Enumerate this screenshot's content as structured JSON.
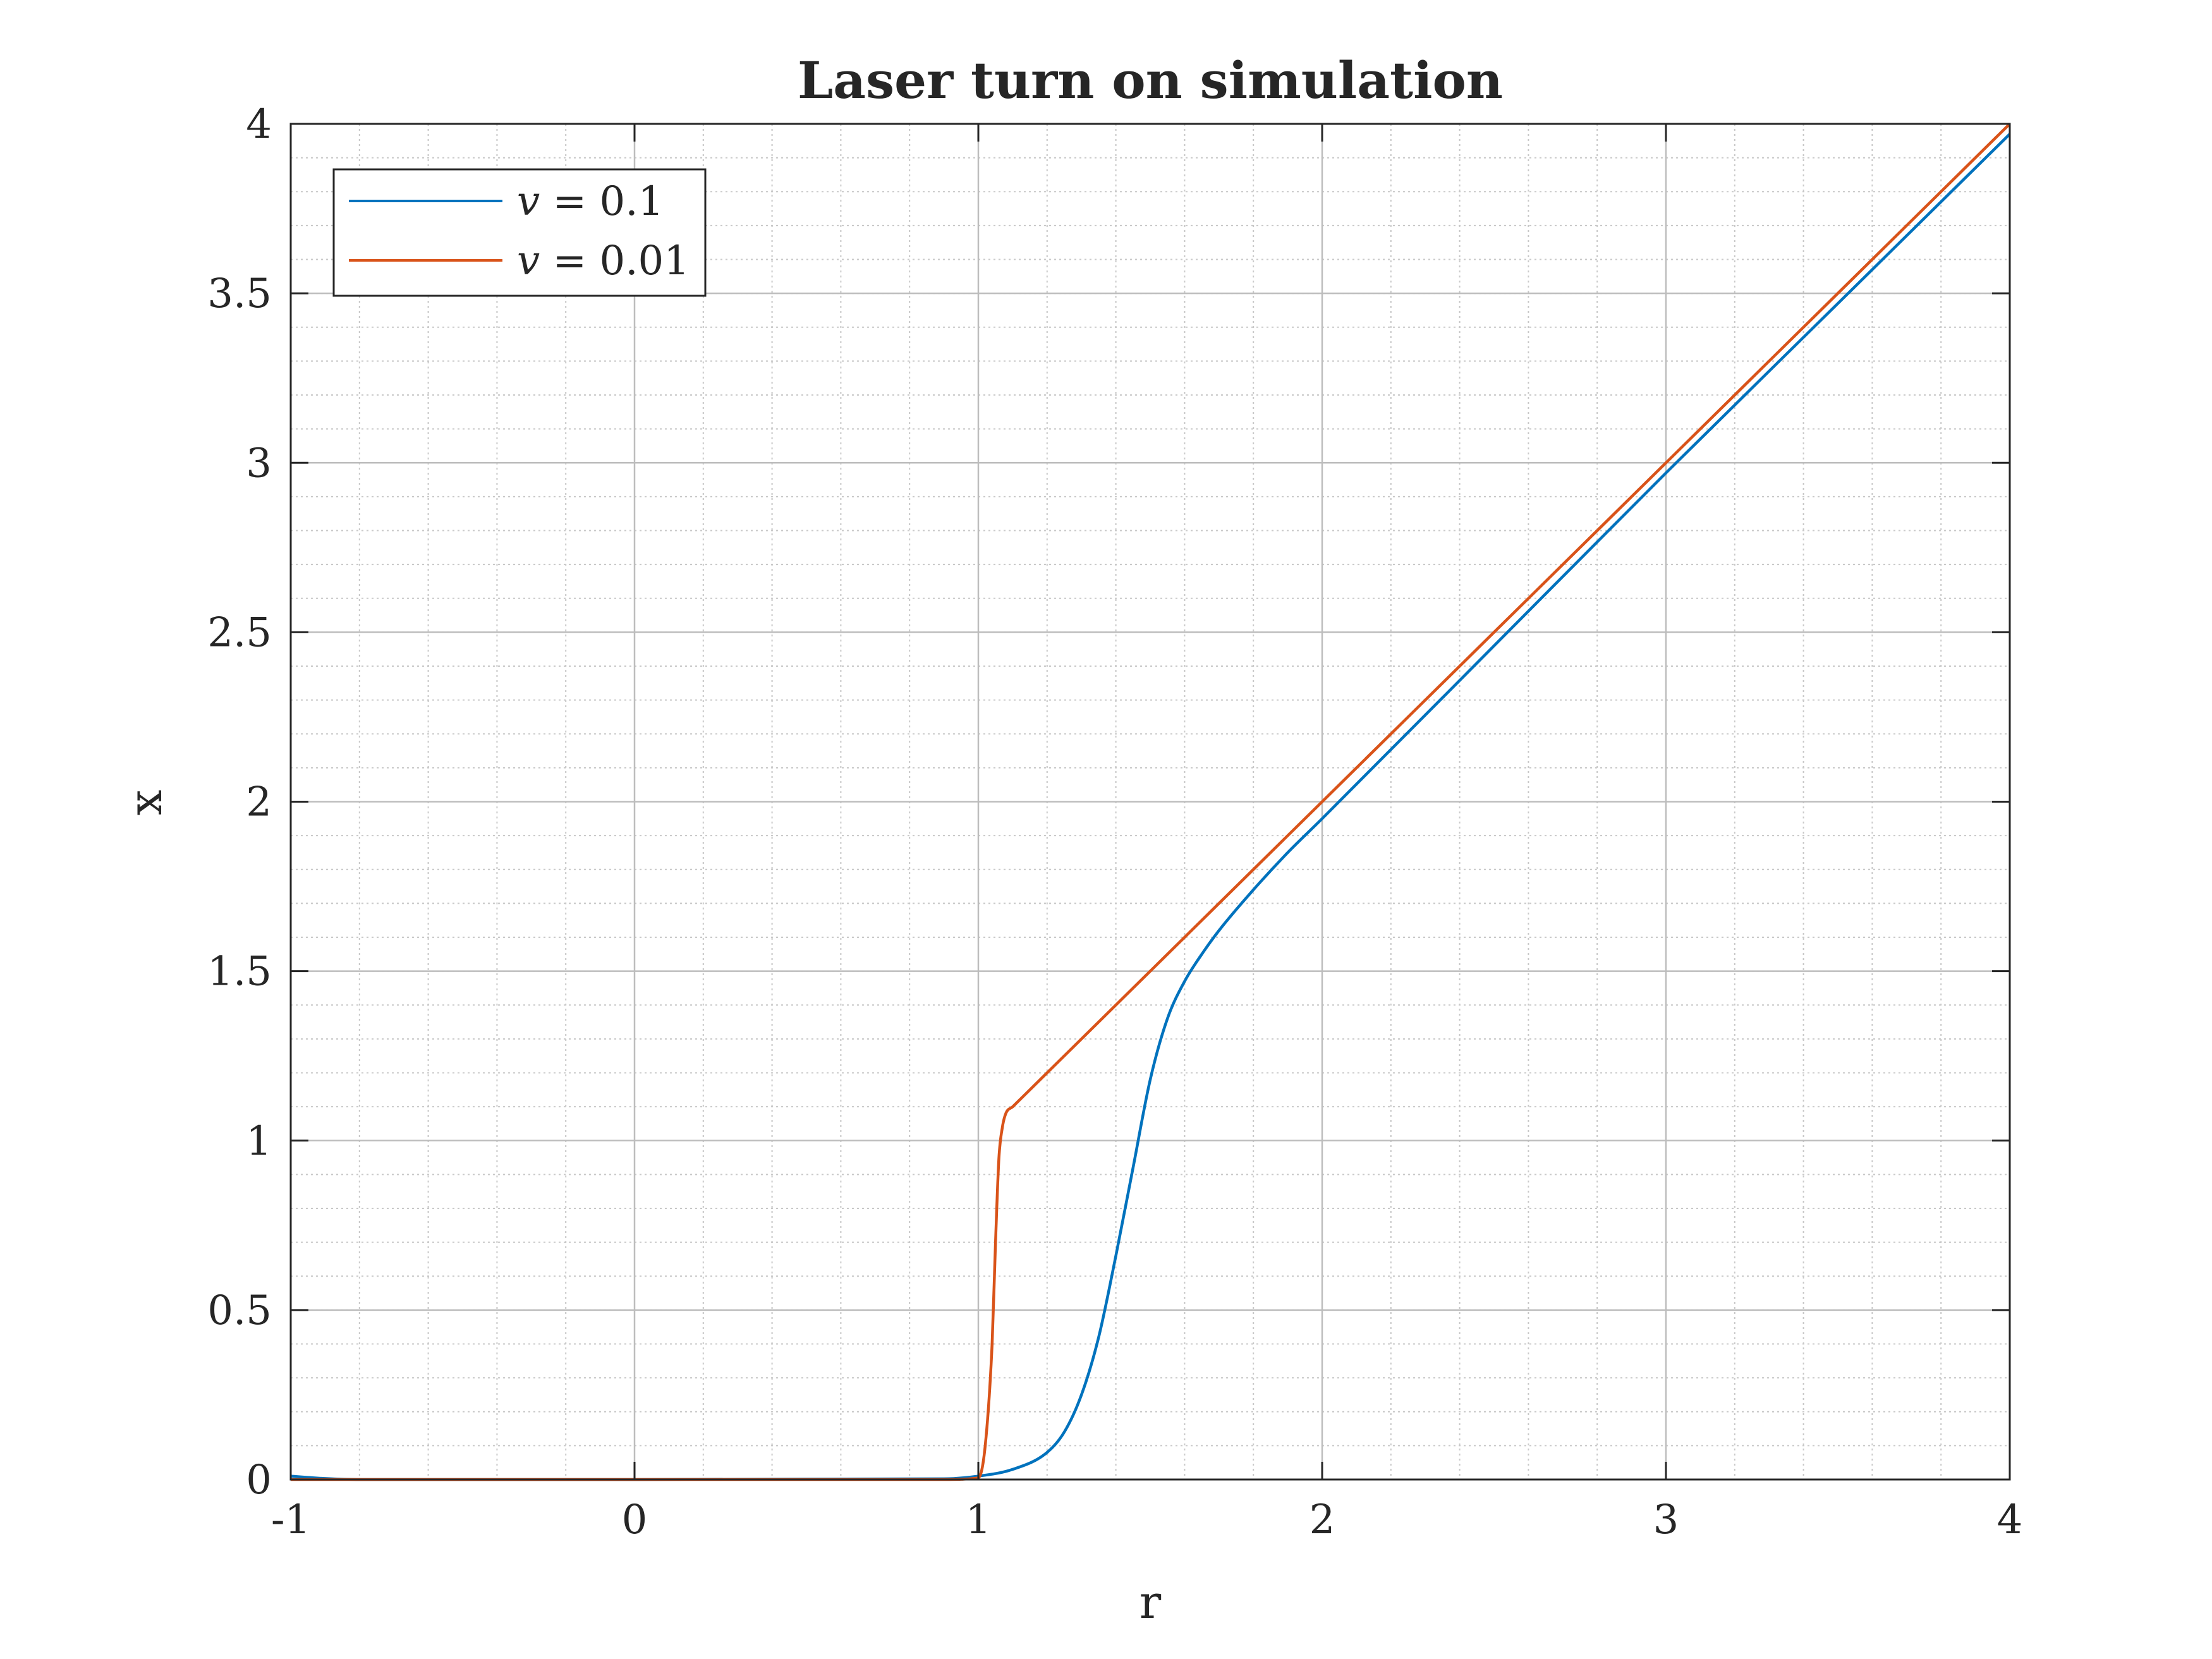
{
  "chart_data": {
    "type": "line",
    "title": "Laser turn on simulation",
    "xlabel": "r",
    "ylabel": "x",
    "xlim": [
      -1,
      4
    ],
    "ylim": [
      0,
      4
    ],
    "xticks": [
      "-1",
      "0",
      "1",
      "2",
      "3",
      "4"
    ],
    "yticks": [
      "0",
      "0.5",
      "1",
      "1.5",
      "2",
      "2.5",
      "3",
      "3.5",
      "4"
    ],
    "grid": true,
    "minor_grid": true,
    "legend_position": "top-left",
    "series": [
      {
        "name": "v = 0.1",
        "name_parts": [
          "v",
          " = 0.1"
        ],
        "color": "#0072BD",
        "x": [
          -1,
          -0.9,
          -0.8,
          0,
          0.9,
          1.0,
          1.1,
          1.2,
          1.25,
          1.3,
          1.35,
          1.4,
          1.45,
          1.5,
          1.55,
          1.6,
          1.65,
          1.7,
          1.8,
          1.9,
          2.0,
          2.5,
          3.0,
          3.5,
          4.0
        ],
        "values": [
          0.01,
          0.003,
          0,
          0,
          0.002,
          0.01,
          0.03,
          0.08,
          0.14,
          0.25,
          0.42,
          0.66,
          0.92,
          1.18,
          1.36,
          1.47,
          1.55,
          1.62,
          1.74,
          1.85,
          1.95,
          2.46,
          2.97,
          3.47,
          3.97
        ]
      },
      {
        "name": "v = 0.01",
        "name_parts": [
          "v",
          " = 0.01"
        ],
        "color": "#D95319",
        "x": [
          -1,
          0,
          0.9,
          1.0,
          1.02,
          1.04,
          1.05,
          1.06,
          1.07,
          1.08,
          1.1,
          1.15,
          1.5,
          2.0,
          2.5,
          3.0,
          3.5,
          4.0
        ],
        "values": [
          0,
          0,
          0,
          0.005,
          0.1,
          0.4,
          0.7,
          0.95,
          1.04,
          1.08,
          1.1,
          1.15,
          1.5,
          2.0,
          2.5,
          3.0,
          3.5,
          4.0
        ]
      }
    ]
  }
}
